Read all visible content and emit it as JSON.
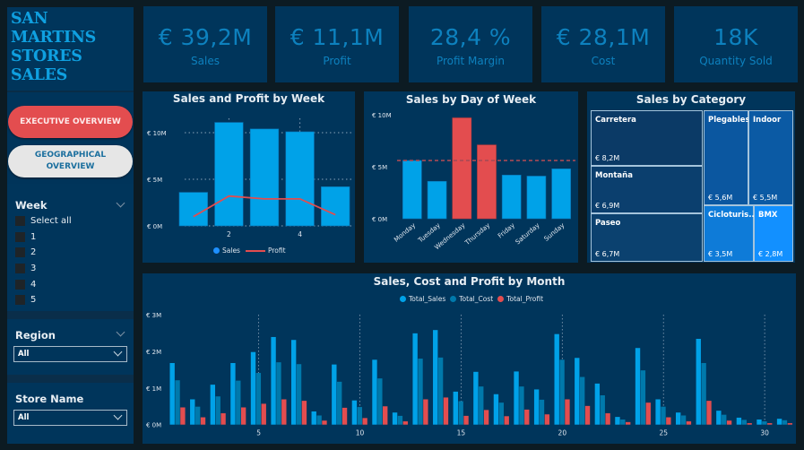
{
  "sidebar": {
    "title_lines": [
      "SAN",
      "MARTINS",
      "STORES",
      "SALES"
    ],
    "nav": {
      "executive_label": "EXECUTIVE OVERVIEW",
      "geographical_label_1": "GEOGRAPHICAL",
      "geographical_label_2": "OVERVIEW"
    },
    "week_slicer": {
      "label": "Week",
      "options": [
        "Select all",
        "1",
        "2",
        "3",
        "4",
        "5"
      ]
    },
    "region_slicer": {
      "label": "Region",
      "selected": "All"
    },
    "store_slicer": {
      "label": "Store Name",
      "selected": "All"
    }
  },
  "kpis": [
    {
      "value": "€ 39,2M",
      "label": "Sales"
    },
    {
      "value": "€ 11,1M",
      "label": "Profit"
    },
    {
      "value": "28,4 %",
      "label": "Profit Margin"
    },
    {
      "value": "€ 28,1M",
      "label": "Cost"
    },
    {
      "value": "18K",
      "label": "Quantity Sold"
    }
  ],
  "colors": {
    "sales": "#00a2e8",
    "cost": "#0079ab",
    "profit": "#e34d4f",
    "highlight": "#e34d4f"
  },
  "chart_data": [
    {
      "type": "bar",
      "title": "Sales and Profit by Week",
      "categories": [
        "1",
        "2",
        "3",
        "4",
        "5"
      ],
      "x_tick_labels": [
        "2",
        "4"
      ],
      "y_tick_labels": [
        "€ 0M",
        "€ 5M",
        "€ 10M"
      ],
      "ylim": [
        0,
        12
      ],
      "unit": "M€",
      "series": [
        {
          "name": "Sales",
          "kind": "bar",
          "values": [
            3.6,
            11.1,
            10.4,
            10.1,
            4.2
          ]
        },
        {
          "name": "Profit",
          "kind": "line",
          "values": [
            1.0,
            3.2,
            2.9,
            2.9,
            1.2
          ]
        }
      ],
      "legend": [
        "Sales",
        "Profit"
      ],
      "legend_position": "bottom",
      "grid": true
    },
    {
      "type": "bar",
      "title": "Sales by Day of Week",
      "categories": [
        "Monday",
        "Tuesday",
        "Wednesday",
        "Thursday",
        "Friday",
        "Saturday",
        "Sunday"
      ],
      "values": [
        5.6,
        3.6,
        9.7,
        7.1,
        4.2,
        4.1,
        4.8
      ],
      "highlighted": [
        "Wednesday",
        "Thursday"
      ],
      "average_line": 5.6,
      "y_tick_labels": [
        "€ 0M",
        "€ 5M",
        "€ 10M"
      ],
      "ylim": [
        0,
        10
      ],
      "unit": "M€",
      "grid": false
    },
    {
      "type": "treemap",
      "title": "Sales by Category",
      "items": [
        {
          "name": "Carretera",
          "label": "€ 8,2M",
          "value": 8.2,
          "color": "#0b3a66"
        },
        {
          "name": "Montaña",
          "label": "€ 6,9M",
          "value": 6.9,
          "color": "#0b3f6e"
        },
        {
          "name": "Paseo",
          "label": "€ 6,7M",
          "value": 6.7,
          "color": "#0b416f"
        },
        {
          "name": "Plegables",
          "label": "€ 5,6M",
          "value": 5.6,
          "color": "#0b57a0"
        },
        {
          "name": "Indoor",
          "label": "€ 5,5M",
          "value": 5.5,
          "color": "#0b5aa4"
        },
        {
          "name": "Cicloturis...",
          "label": "€ 3,5M",
          "value": 3.5,
          "color": "#0e7bd8"
        },
        {
          "name": "BMX",
          "label": "€ 2,8M",
          "value": 2.8,
          "color": "#1290ff"
        }
      ]
    },
    {
      "type": "bar",
      "title": "Sales, Cost and Profit by Month",
      "categories": [
        "1",
        "2",
        "3",
        "4",
        "5",
        "6",
        "7",
        "8",
        "9",
        "10",
        "11",
        "12",
        "13",
        "14",
        "15",
        "16",
        "17",
        "18",
        "19",
        "20",
        "21",
        "22",
        "23",
        "24",
        "25",
        "26",
        "27",
        "28",
        "29",
        "30",
        "31"
      ],
      "x_tick_labels": [
        "5",
        "10",
        "15",
        "20",
        "25",
        "30"
      ],
      "y_tick_labels": [
        "€ 0M",
        "€ 1M",
        "€ 2M",
        "€ 3M"
      ],
      "ylim": [
        0,
        3
      ],
      "unit": "M€",
      "legend": [
        "Total_Sales",
        "Total_Cost",
        "Total_Profit"
      ],
      "legend_position": "top",
      "series": [
        {
          "name": "Total_Sales",
          "values": [
            1.68,
            0.69,
            1.09,
            1.68,
            1.98,
            2.39,
            2.31,
            0.36,
            1.64,
            0.66,
            1.77,
            0.33,
            2.49,
            2.58,
            0.9,
            1.44,
            0.83,
            1.45,
            0.96,
            2.47,
            1.82,
            1.12,
            0.21,
            2.09,
            0.69,
            0.33,
            2.34,
            0.38,
            0.19,
            0.14,
            0.16
          ]
        },
        {
          "name": "Total_Cost",
          "values": [
            1.21,
            0.49,
            0.77,
            1.2,
            1.41,
            1.7,
            1.65,
            0.25,
            1.17,
            0.48,
            1.26,
            0.24,
            1.8,
            1.83,
            0.64,
            1.04,
            0.6,
            1.04,
            0.68,
            1.77,
            1.3,
            0.8,
            0.14,
            1.48,
            0.49,
            0.25,
            1.68,
            0.27,
            0.13,
            0.09,
            0.12
          ]
        },
        {
          "name": "Total_Profit",
          "values": [
            0.47,
            0.2,
            0.31,
            0.47,
            0.57,
            0.69,
            0.65,
            0.11,
            0.46,
            0.18,
            0.5,
            0.09,
            0.69,
            0.74,
            0.24,
            0.4,
            0.23,
            0.41,
            0.28,
            0.69,
            0.51,
            0.31,
            0.07,
            0.6,
            0.2,
            0.09,
            0.65,
            0.11,
            0.04,
            0.04,
            0.04
          ]
        }
      ],
      "grid": false
    }
  ]
}
